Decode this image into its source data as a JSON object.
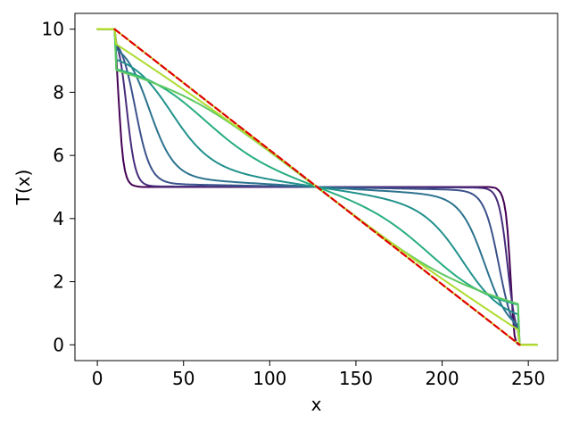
{
  "chart_data": {
    "type": "line",
    "title": "",
    "xlabel": "x",
    "ylabel": "T(x)",
    "xlim": [
      -13,
      267
    ],
    "ylim": [
      -0.5,
      10.5
    ],
    "x_ticks": [
      0,
      50,
      100,
      150,
      200,
      250
    ],
    "y_ticks": [
      0,
      2,
      4,
      6,
      8,
      10
    ],
    "grid": false,
    "legend": "none",
    "boundary": {
      "left_x": [
        0,
        10
      ],
      "right_x": [
        245,
        255
      ],
      "left_value": 10,
      "right_value": 0
    },
    "series": [
      {
        "color": "#440154",
        "x": [
          0,
          10,
          11,
          12,
          13,
          14,
          15,
          16,
          17,
          18,
          19,
          20,
          22,
          24,
          26,
          28,
          30,
          40,
          60,
          90,
          127.5,
          165,
          195,
          215,
          225,
          227,
          229,
          231,
          232,
          233,
          234,
          235,
          236,
          237,
          238,
          239,
          240,
          241,
          242,
          243,
          244,
          245,
          255
        ],
        "y": [
          10,
          10,
          9.1,
          8.1,
          7.2,
          6.4,
          5.85,
          5.52,
          5.32,
          5.19,
          5.12,
          5.07,
          5.03,
          5.01,
          5.0,
          5.0,
          5.0,
          5.0,
          5.0,
          5.0,
          5.0,
          5.0,
          5.0,
          5.0,
          5.0,
          5.0,
          4.99,
          4.97,
          4.93,
          4.88,
          4.81,
          4.68,
          4.48,
          4.15,
          3.6,
          2.8,
          1.9,
          0.95,
          0.3,
          0.08,
          0.02,
          0,
          0
        ]
      },
      {
        "color": "#472d7b",
        "x": [],
        "y": []
      },
      {
        "color": "#3b528b",
        "x": [],
        "y": []
      },
      {
        "color": "#2c728e",
        "x": [],
        "y": []
      },
      {
        "color": "#21918c",
        "x": [],
        "y": []
      },
      {
        "color": "#28ae80",
        "x": [],
        "y": []
      },
      {
        "color": "#5ec962",
        "x": [],
        "y": []
      },
      {
        "color": "#addc30",
        "x": [],
        "y": []
      },
      {
        "color": "#bddf26",
        "x": [
          0,
          10,
          127.5,
          245,
          255
        ],
        "y": [
          10,
          10,
          5,
          0,
          0
        ]
      },
      {
        "color": "#e00000",
        "style": "dashed",
        "x": [
          10,
          245
        ],
        "y": [
          10,
          0
        ]
      }
    ]
  }
}
